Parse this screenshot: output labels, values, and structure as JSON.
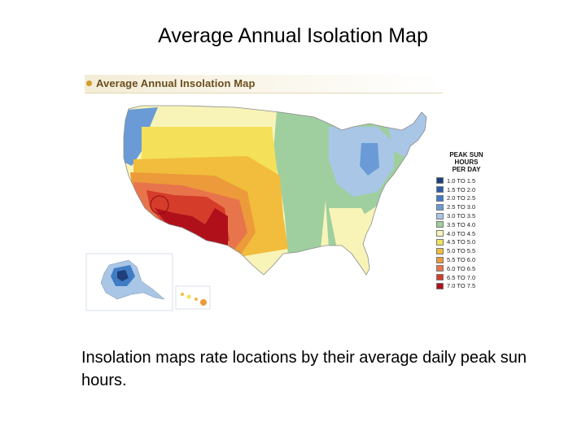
{
  "slide": {
    "title": "Average Annual Isolation Map",
    "caption": "Insolation maps rate locations by their average daily peak sun hours."
  },
  "map": {
    "header_title": "Average Annual Insolation Map",
    "legend": {
      "title_lines": [
        "PEAK SUN",
        "HOURS",
        "PER DAY"
      ],
      "items": [
        {
          "label": "1.0 TO 1.5",
          "color": "#1f3f7a"
        },
        {
          "label": "1.5 TO 2.0",
          "color": "#2d5fa8"
        },
        {
          "label": "2.0 TO 2.5",
          "color": "#3f7cc4"
        },
        {
          "label": "2.5 TO 3.0",
          "color": "#6b9bd6"
        },
        {
          "label": "3.0 TO 3.5",
          "color": "#a9c6e6"
        },
        {
          "label": "3.5 TO 4.0",
          "color": "#9fcf9f"
        },
        {
          "label": "4.0 TO 4.5",
          "color": "#f8f4b8"
        },
        {
          "label": "4.5 TO 5.0",
          "color": "#f5e05a"
        },
        {
          "label": "5.0 TO 5.5",
          "color": "#f2bc3c"
        },
        {
          "label": "5.5 TO 6.0",
          "color": "#ec9a3a"
        },
        {
          "label": "6.0 TO 6.5",
          "color": "#e8744c"
        },
        {
          "label": "6.5 TO 7.0",
          "color": "#d53c2a"
        },
        {
          "label": "7.0 TO 7.5",
          "color": "#b0101a"
        }
      ]
    }
  }
}
